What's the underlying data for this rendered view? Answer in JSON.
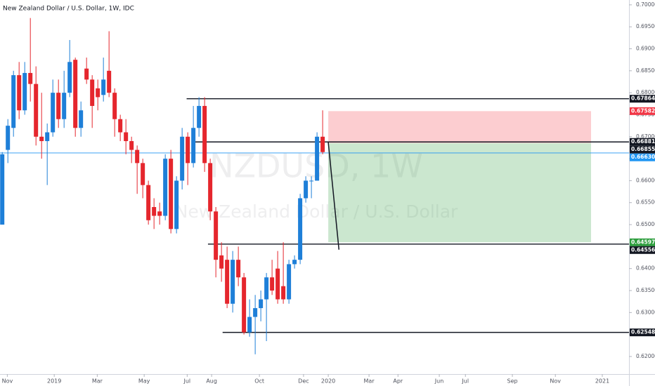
{
  "chart_data": {
    "type": "candlestick",
    "title": "New Zealand Dollar / U.S. Dollar, 1W, IDC",
    "watermark": "NZDUSD, 1W",
    "watermark_subtitle": "New Zealand Dollar / U.S. Dollar",
    "up_color": "#1e7fd8",
    "down_color": "#e5262d",
    "open": [
      0.65,
      0.667,
      0.672,
      0.684,
      0.676,
      0.6845,
      0.682,
      0.67,
      0.669,
      0.671,
      0.68,
      0.674,
      0.68,
      0.6875,
      0.672,
      0.6855,
      0.683,
      0.681,
      0.6795,
      0.685,
      0.68,
      0.674,
      0.671,
      0.669,
      0.667,
      0.664,
      0.659,
      0.654,
      0.653,
      0.652,
      0.665,
      0.649,
      0.66,
      0.67,
      0.664,
      0.672,
      0.677,
      0.664,
      0.653,
      0.643,
      0.642,
      0.632,
      0.642,
      0.638,
      0.6255,
      0.629,
      0.631,
      0.633,
      0.638,
      0.64,
      0.636,
      0.633,
      0.641,
      0.642,
      0.656,
      0.66,
      0.66,
      0.67
    ],
    "high": [
      0.6665,
      0.674,
      0.685,
      0.687,
      0.687,
      0.697,
      0.686,
      0.68,
      0.673,
      0.683,
      0.683,
      0.685,
      0.692,
      0.688,
      0.678,
      0.688,
      0.684,
      0.683,
      0.688,
      0.694,
      0.681,
      0.675,
      0.674,
      0.67,
      0.668,
      0.665,
      0.66,
      0.656,
      0.655,
      0.666,
      0.667,
      0.661,
      0.672,
      0.671,
      0.677,
      0.679,
      0.679,
      0.665,
      0.654,
      0.646,
      0.645,
      0.644,
      0.645,
      0.639,
      0.633,
      0.634,
      0.635,
      0.639,
      0.642,
      0.644,
      0.646,
      0.642,
      0.643,
      0.657,
      0.661,
      0.661,
      0.671,
      0.676
    ],
    "low": [
      0.65,
      0.664,
      0.67,
      0.674,
      0.675,
      0.678,
      0.668,
      0.665,
      0.659,
      0.67,
      0.672,
      0.672,
      0.679,
      0.67,
      0.67,
      0.682,
      0.672,
      0.676,
      0.678,
      0.679,
      0.67,
      0.669,
      0.666,
      0.664,
      0.657,
      0.656,
      0.65,
      0.649,
      0.65,
      0.651,
      0.648,
      0.648,
      0.658,
      0.659,
      0.663,
      0.67,
      0.662,
      0.651,
      0.638,
      0.637,
      0.631,
      0.63,
      0.636,
      0.625,
      0.6245,
      0.6205,
      0.628,
      0.6235,
      0.634,
      0.632,
      0.632,
      0.632,
      0.64,
      0.641,
      0.655,
      0.656,
      0.66,
      0.666
    ],
    "close": [
      0.666,
      0.6725,
      0.684,
      0.676,
      0.6845,
      0.682,
      0.67,
      0.669,
      0.671,
      0.68,
      0.674,
      0.68,
      0.687,
      0.672,
      0.676,
      0.683,
      0.677,
      0.679,
      0.683,
      0.68,
      0.674,
      0.671,
      0.669,
      0.667,
      0.664,
      0.659,
      0.651,
      0.652,
      0.652,
      0.665,
      0.649,
      0.66,
      0.67,
      0.664,
      0.672,
      0.677,
      0.664,
      0.653,
      0.642,
      0.64,
      0.632,
      0.642,
      0.638,
      0.6255,
      0.629,
      0.631,
      0.633,
      0.638,
      0.635,
      0.633,
      0.633,
      0.641,
      0.642,
      0.656,
      0.66,
      0.66,
      0.67,
      0.6665
    ],
    "xlim": [
      -0.4,
      111.5
    ],
    "xticks": [
      {
        "value": 0.9,
        "label": "Nov"
      },
      {
        "value": 9.25,
        "label": "2019"
      },
      {
        "value": 16.9,
        "label": "Mar"
      },
      {
        "value": 25.25,
        "label": "May"
      },
      {
        "value": 32.9,
        "label": "Jul"
      },
      {
        "value": 37.25,
        "label": "Aug"
      },
      {
        "value": 45.75,
        "label": "Oct"
      },
      {
        "value": 53.6,
        "label": "Dec"
      },
      {
        "value": 58,
        "label": "2020"
      },
      {
        "value": 65.25,
        "label": "Mar"
      },
      {
        "value": 70.4,
        "label": "Apr"
      },
      {
        "value": 77.75,
        "label": "Jun"
      },
      {
        "value": 82.4,
        "label": "Jul"
      },
      {
        "value": 90.75,
        "label": "Sep"
      },
      {
        "value": 98.4,
        "label": "Nov"
      },
      {
        "value": 106.75,
        "label": "2021"
      }
    ],
    "ylim": [
      0.616,
      0.7011
    ],
    "yticks": [
      {
        "value": 0.62,
        "label": "0.62000"
      },
      {
        "value": 0.625,
        "label": "0.62500"
      },
      {
        "value": 0.63,
        "label": "0.63000"
      },
      {
        "value": 0.635,
        "label": "0.63500"
      },
      {
        "value": 0.64,
        "label": "0.64000"
      },
      {
        "value": 0.645,
        "label": "0.64500"
      },
      {
        "value": 0.65,
        "label": "0.65000"
      },
      {
        "value": 0.655,
        "label": "0.65500"
      },
      {
        "value": 0.66,
        "label": "0.66000"
      },
      {
        "value": 0.665,
        "label": "0.66500"
      },
      {
        "value": 0.67,
        "label": "0.67000"
      },
      {
        "value": 0.675,
        "label": "0.67500"
      },
      {
        "value": 0.68,
        "label": "0.68000"
      },
      {
        "value": 0.685,
        "label": "0.68500"
      },
      {
        "value": 0.69,
        "label": "0.69000"
      },
      {
        "value": 0.695,
        "label": "0.69500"
      },
      {
        "value": 0.7,
        "label": "0.70000"
      }
    ],
    "levels": [
      {
        "value": 0.67864,
        "label": "0.67864",
        "color": "#131722",
        "from": 32.8
      },
      {
        "value": 0.66881,
        "label": "0.66881",
        "color": "#131722",
        "from": 34
      },
      {
        "value": 0.64556,
        "label": "0.64556",
        "color": "#131722",
        "from": 36.6
      },
      {
        "value": 0.62548,
        "label": "0.62548",
        "color": "#131722",
        "from": 39.2
      },
      {
        "value": 0.6663,
        "label": "0.66630",
        "color": "#2196f3"
      }
    ],
    "position": {
      "stop": {
        "value": 0.67582,
        "label": "0.67582",
        "color": "#f23645"
      },
      "entry": {
        "value": 0.66855,
        "label": "0.66855",
        "color": "#131722"
      },
      "target": {
        "value": 0.64597,
        "label": "0.64597",
        "color": "#2e9e3e"
      },
      "from": 58,
      "to": 104.75
    },
    "trend_line": {
      "x": [
        58,
        59.9
      ],
      "y": [
        0.6687,
        0.6443
      ]
    }
  }
}
